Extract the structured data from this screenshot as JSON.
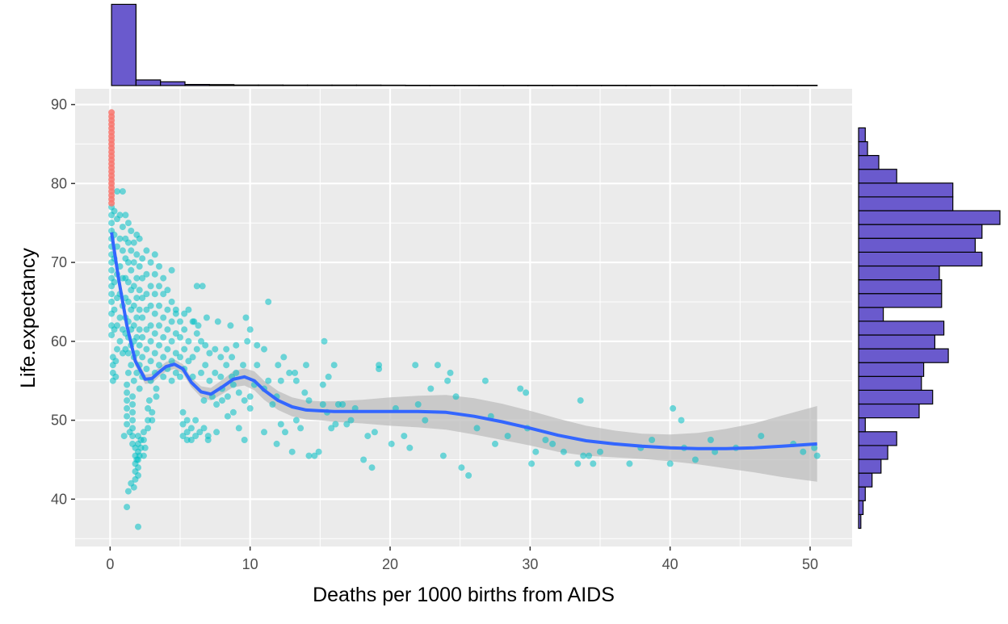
{
  "chart_data": {
    "type": "scatter",
    "xlabel": "Deaths per 1000 births from AIDS",
    "ylabel": "Life.expectancy",
    "xlim": [
      -2.5,
      53
    ],
    "ylim": [
      34,
      92
    ],
    "x_ticks": [
      0,
      10,
      20,
      30,
      40,
      50
    ],
    "y_ticks": [
      40,
      50,
      60,
      70,
      80,
      90
    ],
    "x_tick_labels": [
      "0",
      "10",
      "20",
      "30",
      "40",
      "50"
    ],
    "y_tick_labels": [
      "40",
      "50",
      "60",
      "70",
      "80",
      "90"
    ],
    "grid": true,
    "legend": "none",
    "colors": {
      "panel": "#EBEBEB",
      "grid": "#FFFFFF",
      "point_high": "#F8766D",
      "point_low": "#00BFC4",
      "smooth_line": "#3366FF",
      "confidence_band": "#BEBEBE",
      "histogram_fill": "#6A5ACD",
      "histogram_border": "#000000",
      "axis_text": "#4D4D4D"
    },
    "red_points": {
      "x": 0.1,
      "y": [
        77.5,
        78,
        78.5,
        79,
        79.5,
        80,
        80.5,
        81,
        81.5,
        82,
        82.5,
        83,
        83.5,
        84,
        84.5,
        85,
        85.5,
        86,
        86.5,
        87,
        87.5,
        88,
        88.5,
        89
      ]
    },
    "points": [
      [
        0.1,
        60.8
      ],
      [
        0.1,
        62
      ],
      [
        0.1,
        63.5
      ],
      [
        0.1,
        65
      ],
      [
        0.1,
        66
      ],
      [
        0.1,
        67
      ],
      [
        0.1,
        68
      ],
      [
        0.1,
        69
      ],
      [
        0.1,
        70
      ],
      [
        0.1,
        71
      ],
      [
        0.1,
        72
      ],
      [
        0.1,
        73
      ],
      [
        0.1,
        74
      ],
      [
        0.1,
        75
      ],
      [
        0.1,
        76
      ],
      [
        0.1,
        77
      ],
      [
        0.3,
        61.5
      ],
      [
        0.3,
        64
      ],
      [
        0.3,
        67.5
      ],
      [
        0.3,
        70.5
      ],
      [
        0.3,
        73.5
      ],
      [
        0.3,
        76.5
      ],
      [
        0.5,
        59
      ],
      [
        0.5,
        62
      ],
      [
        0.5,
        65.5
      ],
      [
        0.5,
        68.5
      ],
      [
        0.5,
        72
      ],
      [
        0.5,
        75.5
      ],
      [
        0.5,
        79
      ],
      [
        0.7,
        60
      ],
      [
        0.7,
        63
      ],
      [
        0.7,
        66
      ],
      [
        0.7,
        69.5
      ],
      [
        0.7,
        73
      ],
      [
        0.7,
        76
      ],
      [
        0.9,
        58.5
      ],
      [
        0.9,
        61.5
      ],
      [
        0.9,
        64.5
      ],
      [
        0.9,
        68
      ],
      [
        0.9,
        71.5
      ],
      [
        0.9,
        74.5
      ],
      [
        0.9,
        79
      ],
      [
        0.2,
        58
      ],
      [
        0.2,
        57
      ],
      [
        0.2,
        56
      ],
      [
        0.2,
        55
      ],
      [
        0.4,
        55.5
      ],
      [
        0.4,
        57.5
      ],
      [
        1.1,
        59
      ],
      [
        1.1,
        61
      ],
      [
        1.1,
        63
      ],
      [
        1.1,
        65.5
      ],
      [
        1.1,
        68
      ],
      [
        1.1,
        70.5
      ],
      [
        1.1,
        73
      ],
      [
        1.1,
        76
      ],
      [
        1.3,
        56
      ],
      [
        1.3,
        58.5
      ],
      [
        1.3,
        60.5
      ],
      [
        1.3,
        62.5
      ],
      [
        1.3,
        65
      ],
      [
        1.3,
        67.5
      ],
      [
        1.3,
        70
      ],
      [
        1.3,
        72.5
      ],
      [
        1.3,
        75
      ],
      [
        1.5,
        57
      ],
      [
        1.5,
        59.5
      ],
      [
        1.5,
        61.5
      ],
      [
        1.5,
        64
      ],
      [
        1.5,
        66.5
      ],
      [
        1.5,
        69
      ],
      [
        1.5,
        71.5
      ],
      [
        1.5,
        74
      ],
      [
        1.7,
        55
      ],
      [
        1.7,
        58
      ],
      [
        1.7,
        60
      ],
      [
        1.7,
        62
      ],
      [
        1.7,
        64.5
      ],
      [
        1.7,
        67
      ],
      [
        1.7,
        70
      ],
      [
        1.7,
        72.5
      ],
      [
        1.9,
        56
      ],
      [
        1.9,
        58.5
      ],
      [
        1.9,
        60.5
      ],
      [
        1.9,
        63
      ],
      [
        1.9,
        65.5
      ],
      [
        1.9,
        68
      ],
      [
        1.9,
        71
      ],
      [
        1.9,
        73.5
      ],
      [
        2.1,
        54
      ],
      [
        2.1,
        57
      ],
      [
        2.1,
        59.5
      ],
      [
        2.1,
        61.5
      ],
      [
        2.1,
        64
      ],
      [
        2.1,
        66.5
      ],
      [
        2.1,
        69.5
      ],
      [
        2.1,
        73
      ],
      [
        2.3,
        55.5
      ],
      [
        2.3,
        58
      ],
      [
        2.3,
        60.5
      ],
      [
        2.3,
        63
      ],
      [
        2.3,
        65.5
      ],
      [
        2.3,
        68
      ],
      [
        2.3,
        70.5
      ],
      [
        2.6,
        56.5
      ],
      [
        2.6,
        59
      ],
      [
        2.6,
        61.5
      ],
      [
        2.6,
        64
      ],
      [
        2.6,
        66
      ],
      [
        2.6,
        68.5
      ],
      [
        2.6,
        71.5
      ],
      [
        2.9,
        55
      ],
      [
        2.9,
        57.5
      ],
      [
        2.9,
        60
      ],
      [
        2.9,
        62
      ],
      [
        2.9,
        64.5
      ],
      [
        2.9,
        67
      ],
      [
        2.9,
        70
      ],
      [
        3.2,
        56
      ],
      [
        3.2,
        58.5
      ],
      [
        3.2,
        61
      ],
      [
        3.2,
        63.5
      ],
      [
        3.2,
        66
      ],
      [
        3.2,
        68.5
      ],
      [
        3.2,
        71
      ],
      [
        3.5,
        57
      ],
      [
        3.5,
        59.5
      ],
      [
        3.5,
        62
      ],
      [
        3.5,
        64.5
      ],
      [
        3.5,
        67
      ],
      [
        3.5,
        69.5
      ],
      [
        3.8,
        55.5
      ],
      [
        3.8,
        58
      ],
      [
        3.8,
        60.5
      ],
      [
        3.8,
        63
      ],
      [
        3.8,
        66
      ],
      [
        3.8,
        68
      ],
      [
        4.1,
        56.5
      ],
      [
        4.1,
        59
      ],
      [
        4.1,
        61.5
      ],
      [
        4.1,
        64
      ],
      [
        4.1,
        66.5
      ],
      [
        4.4,
        55
      ],
      [
        4.4,
        57.5
      ],
      [
        4.4,
        60
      ],
      [
        4.4,
        62.5
      ],
      [
        4.4,
        65
      ],
      [
        4.4,
        69
      ],
      [
        4.7,
        56
      ],
      [
        4.7,
        58.5
      ],
      [
        4.7,
        61
      ],
      [
        4.7,
        63.5
      ],
      [
        4.7,
        64
      ],
      [
        5.0,
        55.5
      ],
      [
        5.0,
        58
      ],
      [
        5.0,
        60.5
      ],
      [
        5.0,
        62.5
      ],
      [
        1.2,
        54.5
      ],
      [
        1.2,
        53.5
      ],
      [
        1.2,
        52.5
      ],
      [
        1.2,
        51.5
      ],
      [
        1.2,
        50.5
      ],
      [
        1.2,
        49.5
      ],
      [
        1.4,
        48.5
      ],
      [
        1.6,
        53
      ],
      [
        1.6,
        52
      ],
      [
        1.6,
        51
      ],
      [
        1.6,
        50
      ],
      [
        1.6,
        49
      ],
      [
        1.6,
        48
      ],
      [
        1.6,
        47
      ],
      [
        1.8,
        46.5
      ],
      [
        1.8,
        45.5
      ],
      [
        1.8,
        44.5
      ],
      [
        1.8,
        43.5
      ],
      [
        1.8,
        42.5
      ],
      [
        2.0,
        48
      ],
      [
        2.0,
        47
      ],
      [
        2.0,
        46
      ],
      [
        2.0,
        45
      ],
      [
        2.0,
        44
      ],
      [
        2.0,
        43
      ],
      [
        2.2,
        47.5
      ],
      [
        2.2,
        46.5
      ],
      [
        2.4,
        45.5
      ],
      [
        2.4,
        48.5
      ],
      [
        2.4,
        47.5
      ],
      [
        2.5,
        46.5
      ],
      [
        2.7,
        50
      ],
      [
        2.7,
        49
      ],
      [
        2.7,
        51.5
      ],
      [
        2.8,
        52.5
      ],
      [
        3.0,
        51
      ],
      [
        3.0,
        50
      ],
      [
        3.3,
        53
      ],
      [
        3.3,
        54
      ],
      [
        1.0,
        48
      ],
      [
        1.3,
        41
      ],
      [
        1.5,
        42
      ],
      [
        1.2,
        39
      ],
      [
        2.0,
        36.5
      ],
      [
        1.7,
        41.5
      ],
      [
        2.1,
        45.5
      ],
      [
        1.9,
        45
      ],
      [
        5.3,
        56.5
      ],
      [
        5.3,
        59
      ],
      [
        5.3,
        61.5
      ],
      [
        5.3,
        63.5
      ],
      [
        5.6,
        57.5
      ],
      [
        5.6,
        60
      ],
      [
        5.6,
        64
      ],
      [
        5.9,
        55.5
      ],
      [
        5.9,
        58
      ],
      [
        5.9,
        62.5
      ],
      [
        6.2,
        59
      ],
      [
        6.2,
        61
      ],
      [
        6.2,
        67
      ],
      [
        6.5,
        56
      ],
      [
        6.5,
        60
      ],
      [
        6.8,
        57
      ],
      [
        6.8,
        59.5
      ],
      [
        7.1,
        55
      ],
      [
        7.1,
        58.5
      ],
      [
        7.5,
        56
      ],
      [
        7.5,
        59
      ],
      [
        7.9,
        55.5
      ],
      [
        7.9,
        58
      ],
      [
        8.3,
        57
      ],
      [
        8.3,
        59
      ],
      [
        8.7,
        55.5
      ],
      [
        8.7,
        58
      ],
      [
        9.0,
        56
      ],
      [
        9.0,
        59.5
      ],
      [
        9.5,
        57
      ],
      [
        9.8,
        60
      ],
      [
        5.2,
        51
      ],
      [
        5.2,
        49.5
      ],
      [
        5.2,
        48
      ],
      [
        5.5,
        47.5
      ],
      [
        5.5,
        50
      ],
      [
        5.5,
        48.5
      ],
      [
        5.8,
        49
      ],
      [
        5.8,
        47.5
      ],
      [
        6.1,
        50
      ],
      [
        6.1,
        48
      ],
      [
        6.4,
        48.5
      ],
      [
        6.7,
        52.5
      ],
      [
        6.7,
        49
      ],
      [
        7.0,
        47.5
      ],
      [
        7.0,
        48
      ],
      [
        7.3,
        53
      ],
      [
        7.6,
        52
      ],
      [
        7.6,
        48.5
      ],
      [
        8.0,
        54
      ],
      [
        8.0,
        52.5
      ],
      [
        8.4,
        53
      ],
      [
        8.4,
        50.5
      ],
      [
        8.8,
        54.5
      ],
      [
        8.8,
        51
      ],
      [
        9.2,
        53.5
      ],
      [
        9.2,
        49
      ],
      [
        9.6,
        52.5
      ],
      [
        9.6,
        47.5
      ],
      [
        10.0,
        53
      ],
      [
        10.0,
        51.5
      ],
      [
        10.3,
        54.5
      ],
      [
        6.0,
        62.5
      ],
      [
        6.3,
        62
      ],
      [
        6.6,
        67
      ],
      [
        6.9,
        63
      ],
      [
        7.7,
        62.5
      ],
      [
        8.6,
        62
      ],
      [
        9.7,
        63
      ],
      [
        10.0,
        61.5
      ],
      [
        10.5,
        57
      ],
      [
        10.5,
        59.5
      ],
      [
        11.0,
        59
      ],
      [
        11.0,
        54
      ],
      [
        11.0,
        48.5
      ],
      [
        11.3,
        55
      ],
      [
        11.3,
        65
      ],
      [
        11.6,
        52
      ],
      [
        11.9,
        53
      ],
      [
        11.9,
        47
      ],
      [
        12.2,
        55
      ],
      [
        12.2,
        49.5
      ],
      [
        12.5,
        48.5
      ],
      [
        12.8,
        56
      ],
      [
        13.0,
        46
      ],
      [
        13.3,
        55
      ],
      [
        13.3,
        50
      ],
      [
        13.6,
        49
      ],
      [
        13.9,
        53.5
      ],
      [
        14.2,
        52.5
      ],
      [
        14.2,
        45.5
      ],
      [
        14.6,
        45.5
      ],
      [
        14.9,
        46
      ],
      [
        15.2,
        54.5
      ],
      [
        15.2,
        52
      ],
      [
        15.5,
        51
      ],
      [
        15.8,
        49
      ],
      [
        16.1,
        49.5
      ],
      [
        12.0,
        57
      ],
      [
        12.4,
        58
      ],
      [
        13.2,
        56
      ],
      [
        14.0,
        57
      ],
      [
        15.3,
        60
      ],
      [
        15.6,
        55.5
      ],
      [
        16.0,
        57
      ],
      [
        16.3,
        52
      ],
      [
        16.6,
        52
      ],
      [
        16.9,
        49.5
      ],
      [
        17.2,
        50
      ],
      [
        17.5,
        51.5
      ],
      [
        18.1,
        45
      ],
      [
        18.4,
        48
      ],
      [
        18.7,
        44
      ],
      [
        18.9,
        48.5
      ],
      [
        19.2,
        56.5
      ],
      [
        19.2,
        57
      ],
      [
        20.1,
        47
      ],
      [
        20.4,
        51.5
      ],
      [
        21.0,
        48
      ],
      [
        21.4,
        46.5
      ],
      [
        21.8,
        57
      ],
      [
        22.0,
        52
      ],
      [
        22.5,
        50
      ],
      [
        22.9,
        54
      ],
      [
        23.4,
        57
      ],
      [
        23.8,
        45.5
      ],
      [
        24.1,
        55
      ],
      [
        24.3,
        56
      ],
      [
        24.7,
        53
      ],
      [
        25.1,
        44
      ],
      [
        25.6,
        43
      ],
      [
        26.2,
        49
      ],
      [
        26.8,
        55
      ],
      [
        27.2,
        50.5
      ],
      [
        27.5,
        47
      ],
      [
        28.4,
        48
      ],
      [
        29.3,
        54
      ],
      [
        29.7,
        53.5
      ],
      [
        29.8,
        49
      ],
      [
        30.1,
        44.5
      ],
      [
        30.4,
        46
      ],
      [
        31.1,
        47.5
      ],
      [
        31.6,
        47
      ],
      [
        32.4,
        46
      ],
      [
        33.6,
        52.5
      ],
      [
        33.4,
        44.5
      ],
      [
        33.8,
        45.5
      ],
      [
        34.2,
        45.5
      ],
      [
        34.5,
        44.5
      ],
      [
        35.0,
        46
      ],
      [
        37.1,
        44.5
      ],
      [
        37.9,
        46.5
      ],
      [
        38.7,
        47.5
      ],
      [
        40.0,
        44.5
      ],
      [
        40.2,
        51.5
      ],
      [
        40.8,
        50
      ],
      [
        41.8,
        45
      ],
      [
        42.9,
        47.5
      ],
      [
        44.7,
        46.5
      ],
      [
        46.5,
        48
      ],
      [
        48.8,
        47
      ],
      [
        49.5,
        46
      ],
      [
        50.3,
        46.5
      ],
      [
        50.5,
        45.5
      ],
      [
        41.0,
        46.5
      ],
      [
        43.2,
        46
      ]
    ],
    "smooth": {
      "x": [
        0.1,
        0.6,
        1.2,
        1.8,
        2.5,
        3.0,
        3.5,
        4.0,
        4.6,
        5.2,
        5.8,
        6.5,
        7.2,
        8.0,
        8.8,
        9.6,
        10.3,
        11.0,
        12.0,
        13.0,
        14.0,
        15.0,
        16.0,
        18.0,
        20.0,
        22.0,
        24.0,
        26.0,
        28.0,
        30.0,
        32.0,
        34.0,
        36.0,
        38.0,
        40.0,
        42.0,
        44.0,
        46.0,
        48.0,
        50.5
      ],
      "y": [
        73.8,
        68.0,
        62.0,
        57.5,
        55.2,
        55.3,
        56.1,
        56.8,
        57.1,
        56.5,
        54.8,
        53.6,
        53.3,
        54.2,
        55.2,
        55.5,
        55.0,
        53.8,
        52.5,
        51.7,
        51.3,
        51.2,
        51.1,
        51.1,
        51.1,
        51.1,
        51.0,
        50.5,
        49.8,
        49.0,
        48.1,
        47.4,
        47.0,
        46.7,
        46.5,
        46.4,
        46.4,
        46.5,
        46.7,
        47.0
      ],
      "band_halfwidth": [
        0.8,
        0.7,
        0.6,
        0.6,
        0.6,
        0.6,
        0.6,
        0.6,
        0.6,
        0.6,
        0.6,
        0.7,
        0.8,
        0.9,
        1.0,
        1.1,
        1.2,
        1.2,
        1.2,
        1.2,
        1.2,
        1.2,
        1.3,
        1.5,
        1.8,
        2.0,
        2.2,
        2.3,
        2.3,
        2.2,
        2.1,
        1.9,
        1.7,
        1.6,
        1.7,
        2.0,
        2.5,
        3.1,
        3.9,
        4.8
      ]
    },
    "top_histogram": {
      "bin_width": 1.75,
      "start": 0.1,
      "end": 50.5,
      "counts": [
        1693,
        118,
        79,
        24,
        20,
        12,
        11,
        10,
        10,
        10,
        10,
        9,
        6,
        6,
        6,
        6,
        6,
        6,
        6,
        6,
        6,
        6,
        6,
        6,
        6,
        6,
        6,
        6,
        6
      ],
      "max_count": 1700
    },
    "right_histogram": {
      "bin_width": 1.75,
      "start": 36.3,
      "end": 89.0,
      "counts": [
        1,
        2,
        3,
        6,
        10,
        13,
        17,
        3,
        27,
        33,
        28,
        29,
        40,
        34,
        38,
        11,
        37,
        37,
        36,
        55,
        52,
        55,
        63,
        42,
        42,
        17,
        9,
        4,
        3
      ],
      "max_count": 63
    }
  }
}
